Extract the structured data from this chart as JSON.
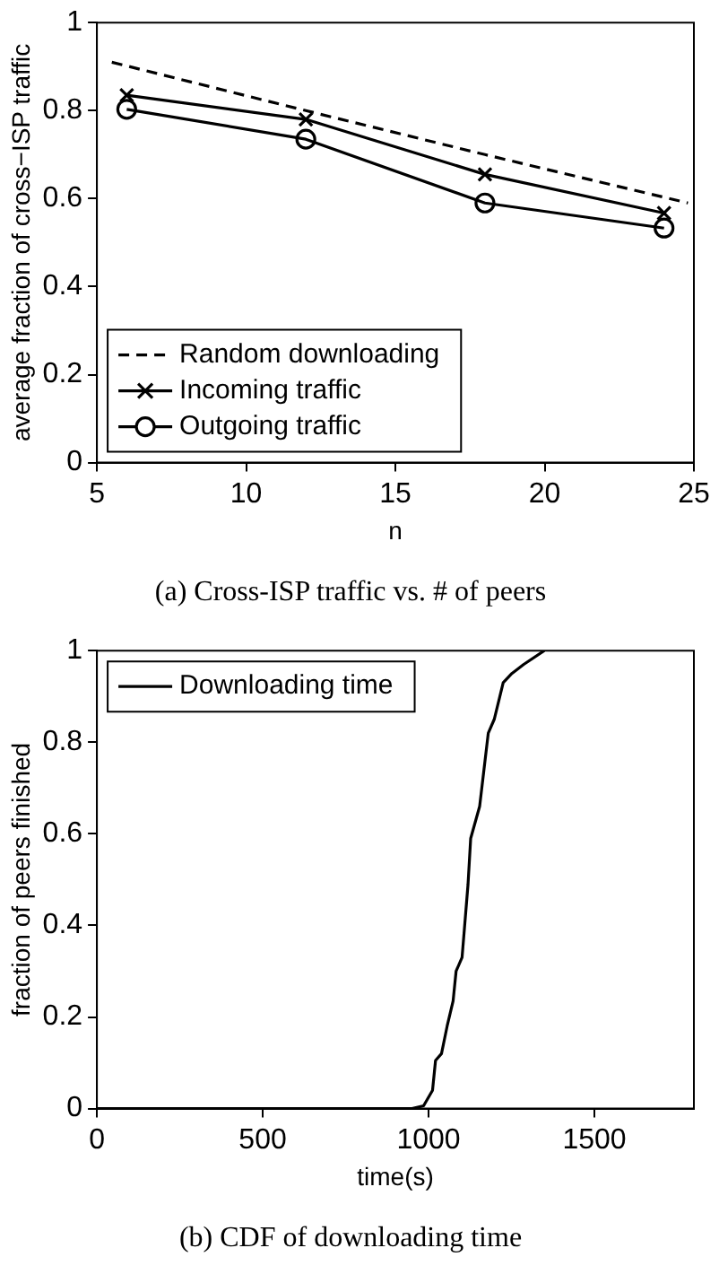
{
  "chart_data": [
    {
      "type": "line",
      "title": "(a) Cross-ISP traffic vs. # of peers",
      "xlabel": "n",
      "ylabel": "average fraction of cross−ISP traffic",
      "xlim": [
        5,
        25
      ],
      "xticks": [
        5,
        10,
        15,
        20,
        25
      ],
      "ylim": [
        0,
        1
      ],
      "yticks": [
        0,
        0.2,
        0.4,
        0.6,
        0.8,
        1
      ],
      "grid": false,
      "legend": "bottom left",
      "series": [
        {
          "name": "Random downloading",
          "color": "#000000",
          "x": [
            5.5,
            12,
            18,
            24.8
          ],
          "values": [
            0.91,
            0.8,
            0.7,
            0.59
          ],
          "line_style": "dashed",
          "marker": "none"
        },
        {
          "name": "Incoming traffic",
          "color": "#000000",
          "x": [
            6,
            12,
            18,
            24
          ],
          "values": [
            0.835,
            0.78,
            0.655,
            0.567
          ],
          "line_style": "solid",
          "marker": "cross"
        },
        {
          "name": "Outgoing traffic",
          "color": "#000000",
          "x": [
            6,
            12,
            18,
            24
          ],
          "values": [
            0.803,
            0.735,
            0.59,
            0.533
          ],
          "line_style": "solid",
          "marker": "circle"
        }
      ]
    },
    {
      "type": "line",
      "title": "(b) CDF of downloading time",
      "xlabel": "time(s)",
      "ylabel": "fraction of peers finished",
      "xlim": [
        0,
        1800
      ],
      "xticks": [
        0,
        500,
        1000,
        1500
      ],
      "ylim": [
        0,
        1
      ],
      "yticks": [
        0,
        0.2,
        0.4,
        0.6,
        0.8,
        1
      ],
      "grid": false,
      "legend": "top left",
      "marker": "none",
      "line_style": "solid",
      "series": [
        {
          "name": "Downloading time",
          "color": "#000000",
          "x": [
            0,
            950,
            985,
            1012,
            1021,
            1039,
            1056,
            1074,
            1083,
            1101,
            1119,
            1127,
            1154,
            1180,
            1198,
            1225,
            1251,
            1287,
            1349
          ],
          "values": [
            0,
            0,
            0.006,
            0.04,
            0.105,
            0.12,
            0.18,
            0.235,
            0.3,
            0.33,
            0.49,
            0.59,
            0.66,
            0.82,
            0.85,
            0.93,
            0.95,
            0.97,
            1
          ]
        }
      ]
    }
  ]
}
